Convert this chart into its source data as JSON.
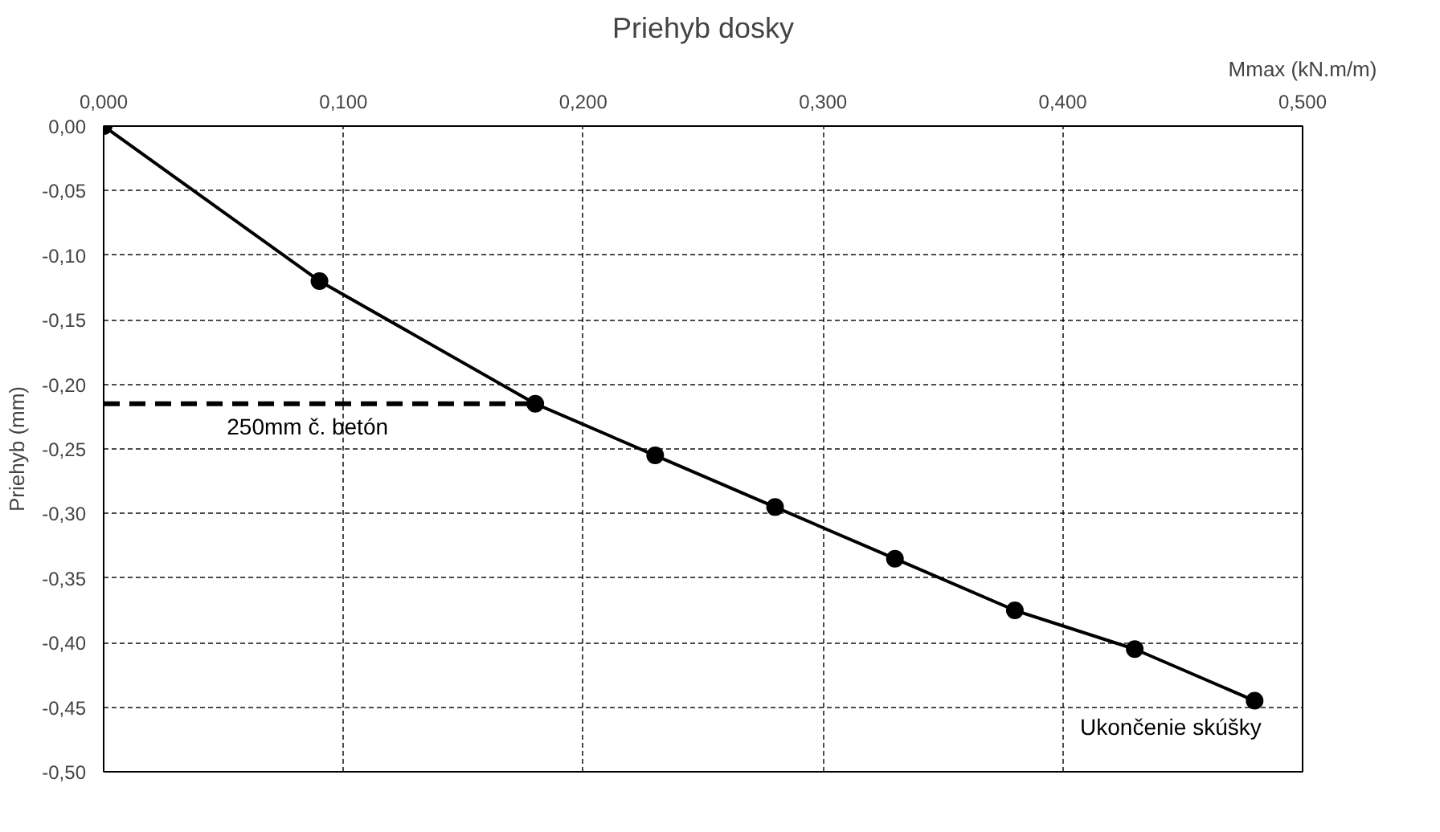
{
  "chart_data": {
    "type": "line",
    "title": "Priehyb dosky",
    "xlabel": "Mmax (kN.m/m)",
    "ylabel": "Priehyb (mm)",
    "xlim": [
      0,
      0.5
    ],
    "ylim": [
      -0.5,
      0
    ],
    "xticks": [
      {
        "value": 0,
        "label": "0,000"
      },
      {
        "value": 0.1,
        "label": "0,100"
      },
      {
        "value": 0.2,
        "label": "0,200"
      },
      {
        "value": 0.3,
        "label": "0,300"
      },
      {
        "value": 0.4,
        "label": "0,400"
      },
      {
        "value": 0.5,
        "label": "0,500"
      }
    ],
    "yticks": [
      {
        "value": 0,
        "label": "0,00"
      },
      {
        "value": -0.05,
        "label": "-0,05"
      },
      {
        "value": -0.1,
        "label": "-0,10"
      },
      {
        "value": -0.15,
        "label": "-0,15"
      },
      {
        "value": -0.2,
        "label": "-0,20"
      },
      {
        "value": -0.25,
        "label": "-0,25"
      },
      {
        "value": -0.3,
        "label": "-0,30"
      },
      {
        "value": -0.35,
        "label": "-0,35"
      },
      {
        "value": -0.4,
        "label": "-0,40"
      },
      {
        "value": -0.45,
        "label": "-0,45"
      },
      {
        "value": -0.5,
        "label": "-0,50"
      }
    ],
    "grid": true,
    "series": [
      {
        "color": "#000000",
        "marker": "circle",
        "line_style": "solid",
        "x": [
          0,
          0.09,
          0.18,
          0.23,
          0.28,
          0.33,
          0.38,
          0.43,
          0.48
        ],
        "values": [
          0,
          -0.12,
          -0.215,
          -0.255,
          -0.295,
          -0.335,
          -0.375,
          -0.405,
          -0.445
        ]
      },
      {
        "color": "#000000",
        "marker": "none",
        "line_style": "dashed",
        "x": [
          0,
          0.18
        ],
        "values": [
          -0.215,
          -0.215
        ]
      }
    ],
    "annotations": [
      "250mm č. betón",
      "Ukončenie skúšky"
    ]
  }
}
